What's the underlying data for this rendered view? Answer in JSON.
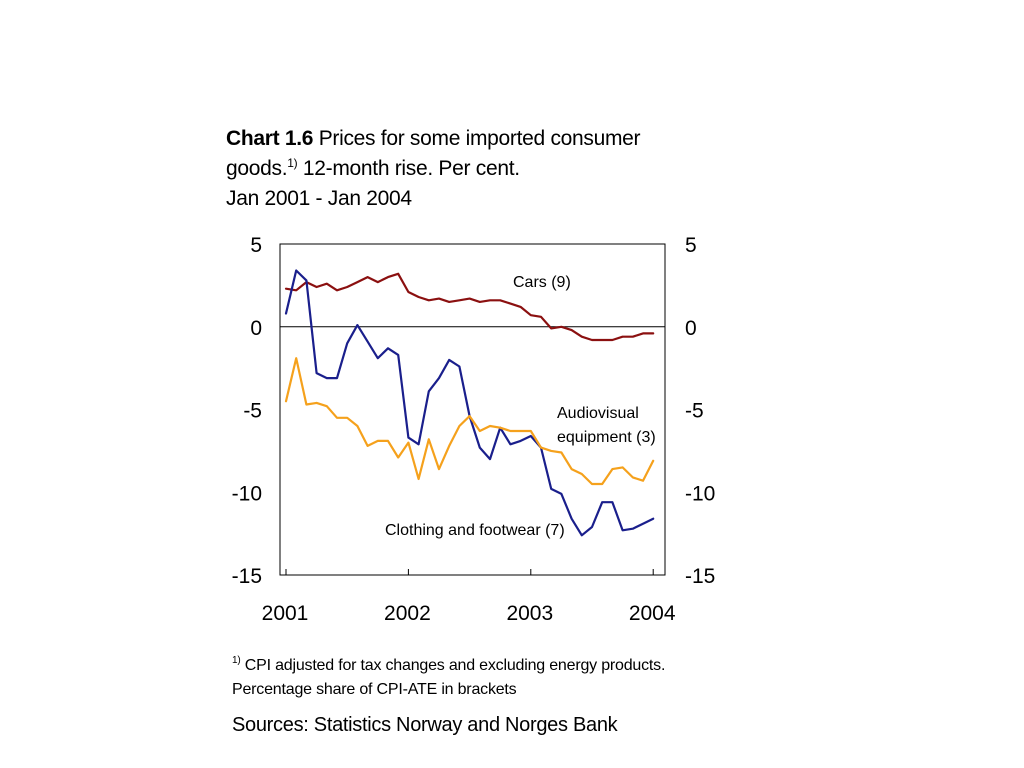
{
  "title": {
    "number": "Chart 1.6",
    "text_part1": " Prices for some imported consumer goods.",
    "footnote_mark": "1)",
    "text_part2": " 12-month rise. Per cent.",
    "period": "Jan 2001 - Jan 2004"
  },
  "footnote": {
    "mark": "1)",
    "line1": " CPI adjusted for tax changes and excluding energy products.",
    "line2": "Percentage share of CPI-ATE in brackets"
  },
  "sources": "Sources: Statistics Norway and Norges Bank",
  "chart_data": {
    "type": "line",
    "ylim": [
      -15,
      5
    ],
    "yticks": [
      5,
      0,
      -5,
      -10,
      -15
    ],
    "xticks": [
      "2001",
      "2002",
      "2003",
      "2004"
    ],
    "zero_line": true,
    "x": [
      "Jan 2001",
      "Feb 2001",
      "Mar 2001",
      "Apr 2001",
      "May 2001",
      "Jun 2001",
      "Jul 2001",
      "Aug 2001",
      "Sep 2001",
      "Oct 2001",
      "Nov 2001",
      "Dec 2001",
      "Jan 2002",
      "Feb 2002",
      "Mar 2002",
      "Apr 2002",
      "May 2002",
      "Jun 2002",
      "Jul 2002",
      "Aug 2002",
      "Sep 2002",
      "Oct 2002",
      "Nov 2002",
      "Dec 2002",
      "Jan 2003",
      "Feb 2003",
      "Mar 2003",
      "Apr 2003",
      "May 2003",
      "Jun 2003",
      "Jul 2003",
      "Aug 2003",
      "Sep 2003",
      "Oct 2003",
      "Nov 2003",
      "Dec 2003",
      "Jan 2004"
    ],
    "series": [
      {
        "name": "Cars (9)",
        "color": "#8b1010",
        "values": [
          2.3,
          2.2,
          2.7,
          2.4,
          2.6,
          2.2,
          2.4,
          2.7,
          3.0,
          2.7,
          3.0,
          3.2,
          2.1,
          1.8,
          1.6,
          1.7,
          1.5,
          1.6,
          1.7,
          1.5,
          1.6,
          1.6,
          1.4,
          1.2,
          0.7,
          0.6,
          -0.1,
          0.0,
          -0.2,
          -0.6,
          -0.8,
          -0.8,
          -0.8,
          -0.6,
          -0.6,
          -0.4,
          -0.4
        ]
      },
      {
        "name": "Clothing and footwear (7)",
        "color": "#1a1f8c",
        "values": [
          0.8,
          3.4,
          2.8,
          -2.8,
          -3.1,
          -3.1,
          -1.0,
          0.1,
          -0.9,
          -1.9,
          -1.3,
          -1.7,
          -6.7,
          -7.1,
          -3.9,
          -3.1,
          -2.0,
          -2.4,
          -5.4,
          -7.3,
          -8.0,
          -6.1,
          -7.1,
          -6.9,
          -6.6,
          -7.3,
          -9.8,
          -10.1,
          -11.6,
          -12.6,
          -12.1,
          -10.6,
          -10.6,
          -12.3,
          -12.2,
          -11.9,
          -11.6
        ]
      },
      {
        "name": "Audiovisual equipment (3)",
        "color": "#f5a11c",
        "values": [
          -4.5,
          -1.9,
          -4.7,
          -4.6,
          -4.8,
          -5.5,
          -5.5,
          -6.0,
          -7.2,
          -6.9,
          -6.9,
          -7.9,
          -7.0,
          -9.2,
          -6.8,
          -8.6,
          -7.2,
          -6.0,
          -5.4,
          -6.3,
          -6.0,
          -6.1,
          -6.3,
          -6.3,
          -6.3,
          -7.3,
          -7.5,
          -7.6,
          -8.6,
          -8.9,
          -9.5,
          -9.5,
          -8.6,
          -8.5,
          -9.1,
          -9.3,
          -8.1
        ]
      }
    ],
    "labels": {
      "cars": "Cars (9)",
      "audio_line1": "Audiovisual",
      "audio_line2": "equipment (3)",
      "clothing": "Clothing and footwear (7)"
    }
  }
}
